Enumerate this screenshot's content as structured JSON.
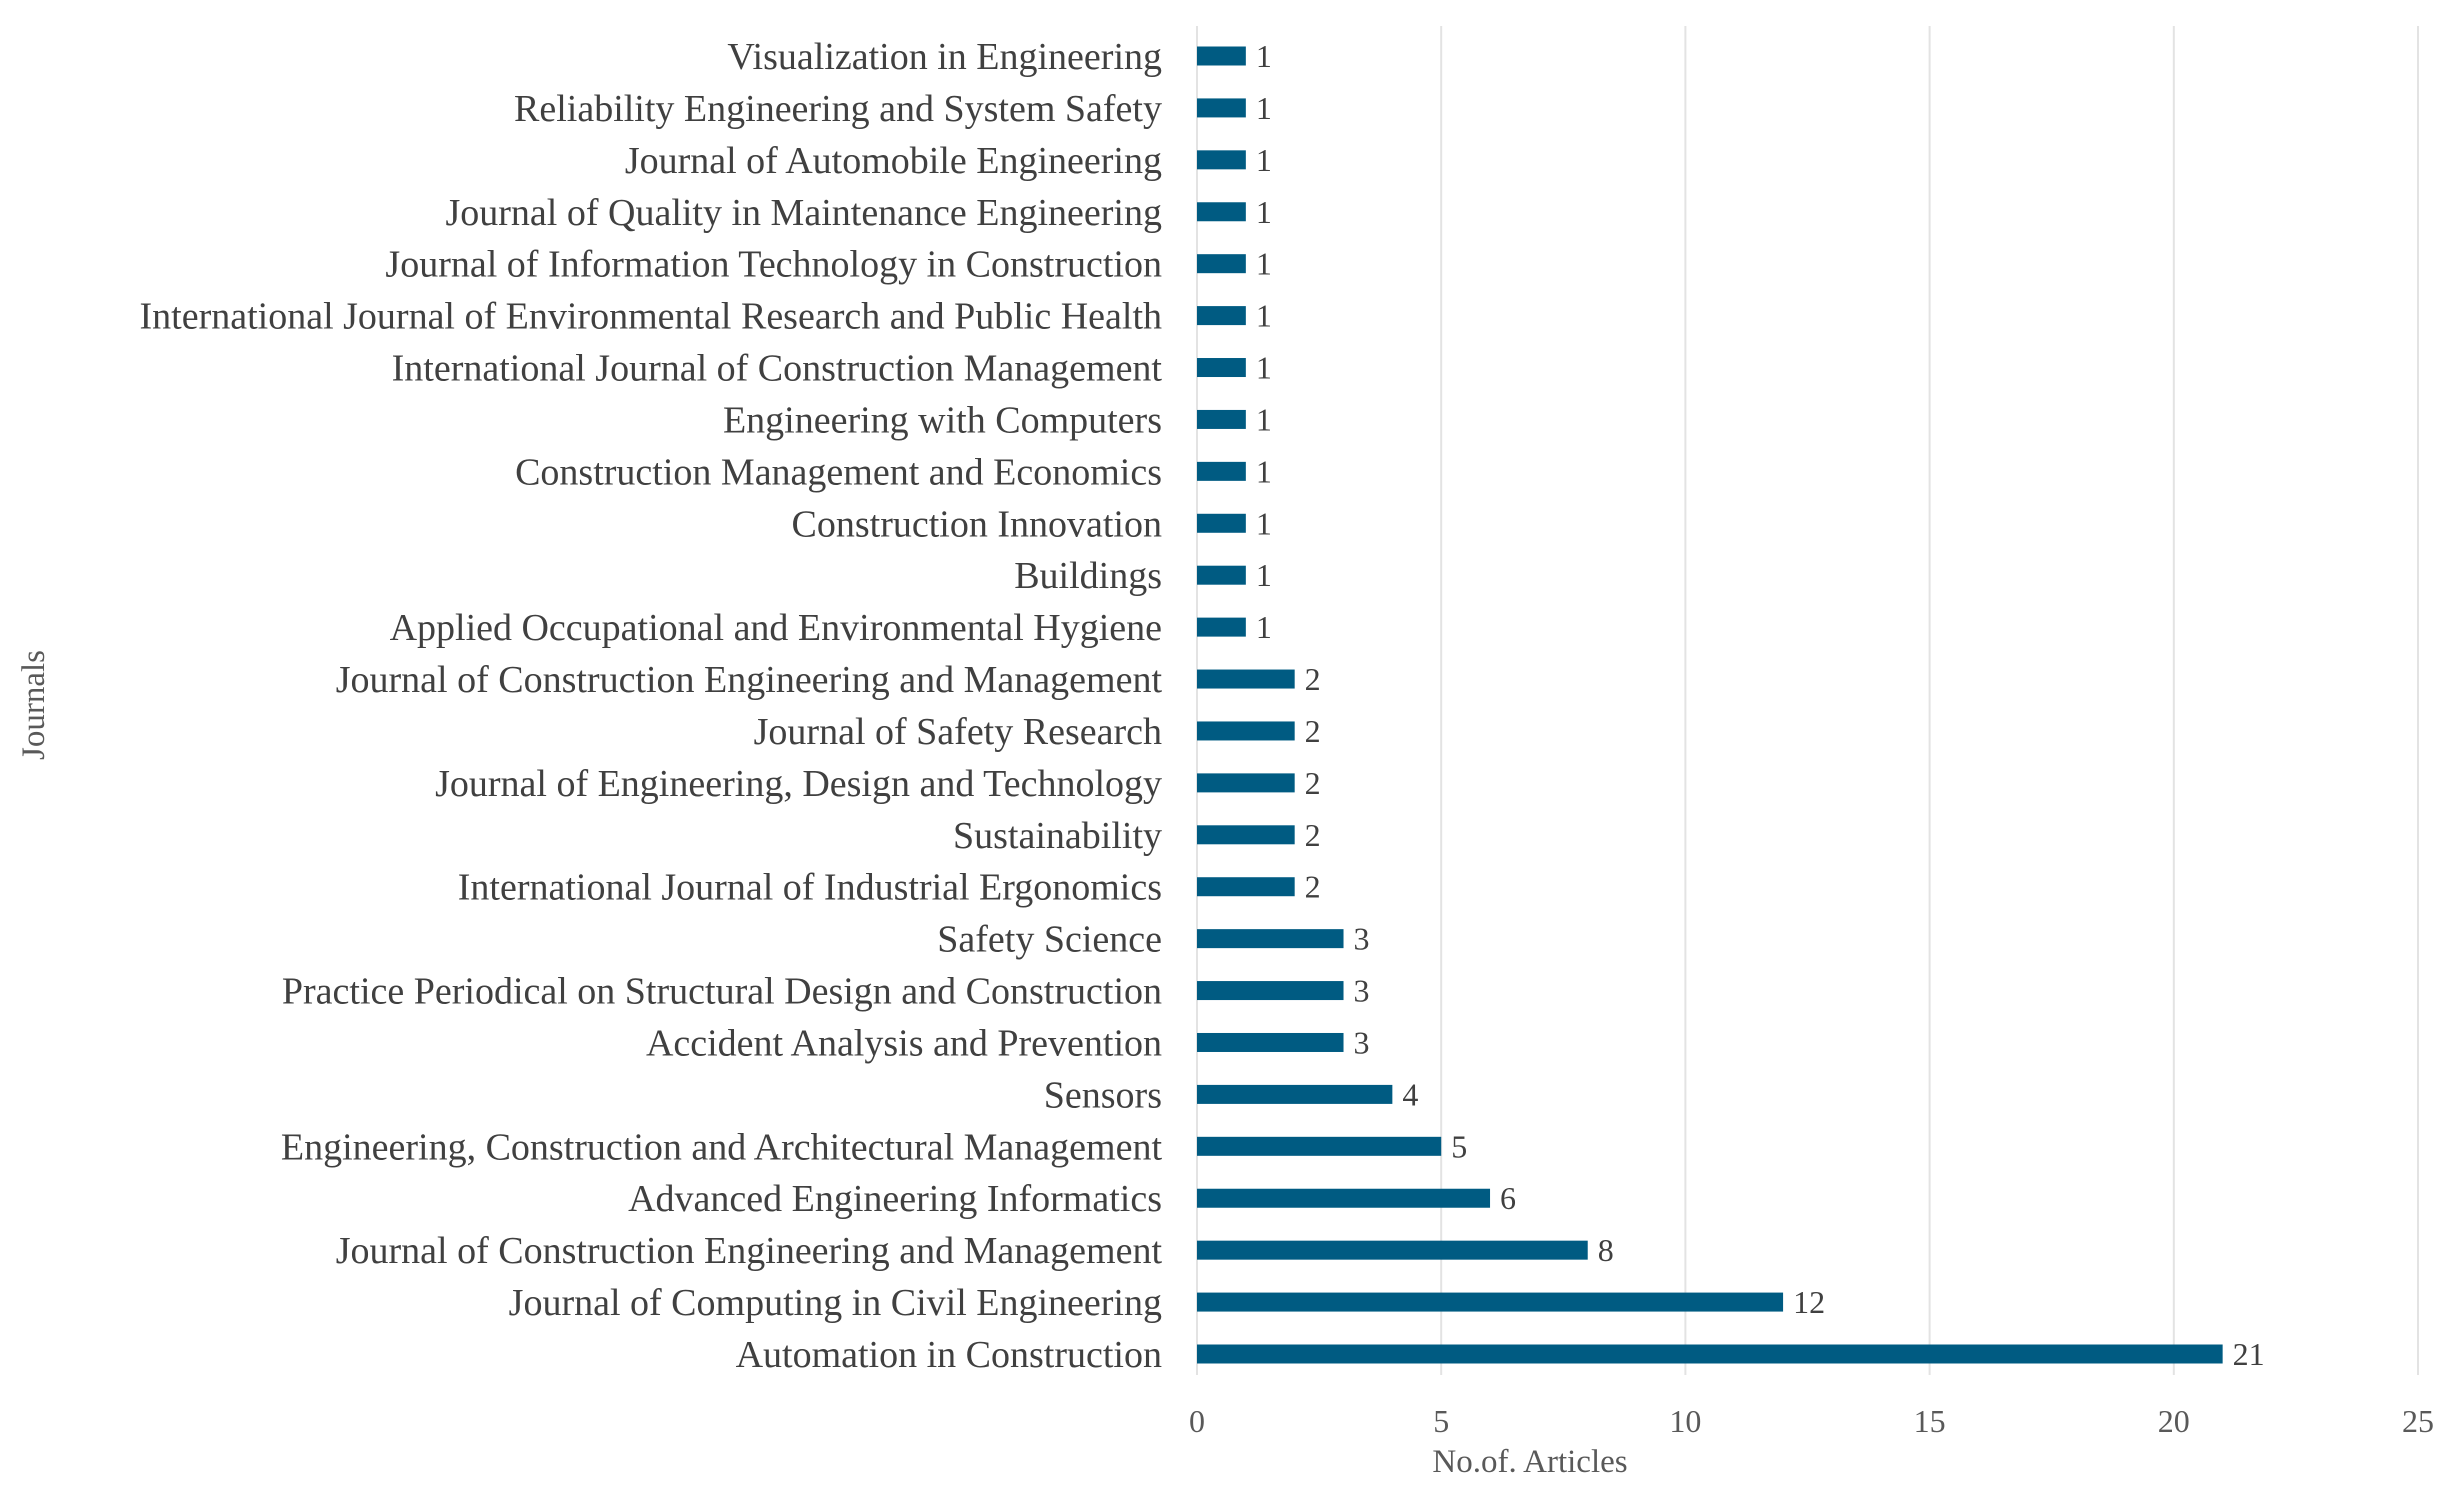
{
  "chart_data": {
    "type": "bar",
    "orientation": "horizontal",
    "title": "",
    "xlabel": "No.of. Articles",
    "ylabel": "Journals",
    "xlim": [
      0,
      25
    ],
    "xticks": [
      0,
      5,
      10,
      15,
      20,
      25
    ],
    "grid": true,
    "bar_color": "#005b82",
    "categories": [
      "Visualization in Engineering",
      "Reliability Engineering and System Safety",
      "Journal of Automobile Engineering",
      "Journal of Quality in Maintenance Engineering",
      "Journal of Information Technology in Construction",
      "International Journal of Environmental Research and Public Health",
      "International Journal of Construction Management",
      "Engineering with Computers",
      "Construction Management and Economics",
      "Construction Innovation",
      "Buildings",
      "Applied Occupational and Environmental Hygiene",
      "Journal of Construction  Engineering and Management",
      "Journal of Safety Research",
      "Journal of Engineering, Design and Technology",
      "Sustainability",
      "International Journal of Industrial Ergonomics",
      "Safety Science",
      "Practice Periodical on Structural Design and Construction",
      "Accident Analysis and Prevention",
      "Sensors",
      "Engineering, Construction and Architectural Management",
      "Advanced Engineering Informatics",
      "Journal of Construction Engineering and Management",
      "Journal of Computing in Civil Engineering",
      "Automation in Construction"
    ],
    "values": [
      1,
      1,
      1,
      1,
      1,
      1,
      1,
      1,
      1,
      1,
      1,
      1,
      2,
      2,
      2,
      2,
      2,
      3,
      3,
      3,
      4,
      5,
      6,
      8,
      12,
      21
    ]
  }
}
